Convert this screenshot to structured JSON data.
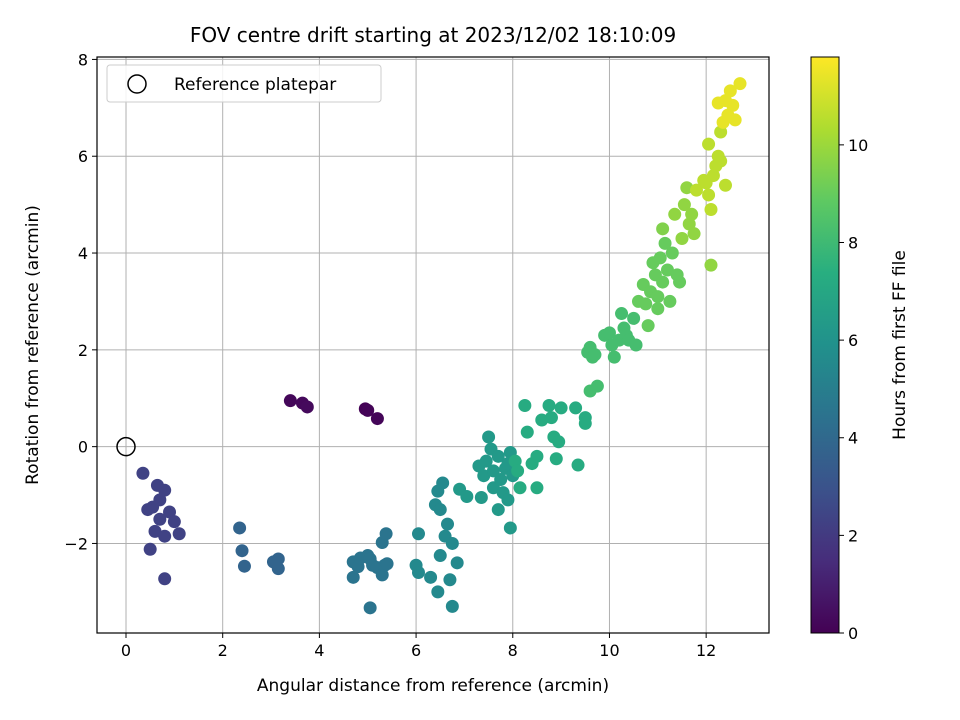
{
  "chart_data": {
    "type": "scatter",
    "title": "FOV centre drift starting at 2023/12/02 18:10:09",
    "xlabel": "Angular distance from reference (arcmin)",
    "ylabel": "Rotation from reference (arcmin)",
    "xlim": [
      -0.6,
      13.3
    ],
    "ylim": [
      -3.85,
      8.05
    ],
    "xticks": [
      0,
      2,
      4,
      6,
      8,
      10,
      12
    ],
    "yticks": [
      -2,
      0,
      2,
      4,
      6,
      8
    ],
    "grid": true,
    "legend": {
      "location": "upper-left",
      "entries": [
        "Reference platepar"
      ]
    },
    "reference_point": {
      "x": 0,
      "y": 0
    },
    "colorbar": {
      "label": "Hours from first FF file",
      "range": [
        0,
        11.8
      ],
      "ticks": [
        0,
        2,
        4,
        6,
        8,
        10
      ],
      "colormap": "viridis"
    },
    "points": [
      {
        "x": 3.4,
        "y": 0.95,
        "h": 0.2
      },
      {
        "x": 3.65,
        "y": 0.9,
        "h": 0.25
      },
      {
        "x": 3.75,
        "y": 0.82,
        "h": 0.3
      },
      {
        "x": 4.95,
        "y": 0.78,
        "h": 0.05
      },
      {
        "x": 5.0,
        "y": 0.75,
        "h": 0.1
      },
      {
        "x": 5.2,
        "y": 0.58,
        "h": 0.15
      },
      {
        "x": 0.35,
        "y": -0.55,
        "h": 2.3
      },
      {
        "x": 0.65,
        "y": -0.8,
        "h": 2.3
      },
      {
        "x": 0.8,
        "y": -0.9,
        "h": 2.3
      },
      {
        "x": 0.7,
        "y": -1.1,
        "h": 2.3
      },
      {
        "x": 0.55,
        "y": -1.25,
        "h": 2.3
      },
      {
        "x": 0.45,
        "y": -1.3,
        "h": 2.3
      },
      {
        "x": 0.9,
        "y": -1.35,
        "h": 2.3
      },
      {
        "x": 0.7,
        "y": -1.5,
        "h": 2.3
      },
      {
        "x": 1.0,
        "y": -1.55,
        "h": 2.3
      },
      {
        "x": 0.6,
        "y": -1.75,
        "h": 2.3
      },
      {
        "x": 0.8,
        "y": -1.85,
        "h": 2.3
      },
      {
        "x": 1.1,
        "y": -1.8,
        "h": 2.3
      },
      {
        "x": 0.5,
        "y": -2.12,
        "h": 2.3
      },
      {
        "x": 0.8,
        "y": -2.73,
        "h": 2.3
      },
      {
        "x": 2.35,
        "y": -1.68,
        "h": 3.8
      },
      {
        "x": 2.4,
        "y": -2.15,
        "h": 3.8
      },
      {
        "x": 2.45,
        "y": -2.47,
        "h": 3.8
      },
      {
        "x": 3.05,
        "y": -2.38,
        "h": 3.8
      },
      {
        "x": 3.15,
        "y": -2.32,
        "h": 3.8
      },
      {
        "x": 3.15,
        "y": -2.52,
        "h": 3.8
      },
      {
        "x": 4.7,
        "y": -2.38,
        "h": 4.5
      },
      {
        "x": 4.7,
        "y": -2.7,
        "h": 4.5
      },
      {
        "x": 4.8,
        "y": -2.48,
        "h": 4.5
      },
      {
        "x": 4.85,
        "y": -2.3,
        "h": 4.5
      },
      {
        "x": 5.0,
        "y": -2.25,
        "h": 4.5
      },
      {
        "x": 5.05,
        "y": -2.32,
        "h": 4.5
      },
      {
        "x": 5.1,
        "y": -2.45,
        "h": 4.5
      },
      {
        "x": 5.2,
        "y": -2.5,
        "h": 4.5
      },
      {
        "x": 5.3,
        "y": -2.65,
        "h": 4.5
      },
      {
        "x": 5.35,
        "y": -2.45,
        "h": 4.5
      },
      {
        "x": 5.4,
        "y": -2.42,
        "h": 4.5
      },
      {
        "x": 5.3,
        "y": -1.98,
        "h": 4.5
      },
      {
        "x": 5.38,
        "y": -1.8,
        "h": 4.5
      },
      {
        "x": 5.05,
        "y": -3.33,
        "h": 4.5
      },
      {
        "x": 6.0,
        "y": -2.45,
        "h": 5.5
      },
      {
        "x": 6.05,
        "y": -2.6,
        "h": 5.5
      },
      {
        "x": 6.05,
        "y": -1.8,
        "h": 5.5
      },
      {
        "x": 6.3,
        "y": -2.7,
        "h": 5.5
      },
      {
        "x": 6.4,
        "y": -1.2,
        "h": 5.5
      },
      {
        "x": 6.45,
        "y": -0.92,
        "h": 5.5
      },
      {
        "x": 6.5,
        "y": -1.3,
        "h": 5.5
      },
      {
        "x": 6.55,
        "y": -0.75,
        "h": 5.5
      },
      {
        "x": 6.5,
        "y": -2.25,
        "h": 5.5
      },
      {
        "x": 6.6,
        "y": -1.85,
        "h": 5.5
      },
      {
        "x": 6.65,
        "y": -1.6,
        "h": 5.5
      },
      {
        "x": 6.75,
        "y": -2.0,
        "h": 5.5
      },
      {
        "x": 6.7,
        "y": -2.75,
        "h": 5.5
      },
      {
        "x": 6.85,
        "y": -2.4,
        "h": 5.5
      },
      {
        "x": 6.45,
        "y": -3.0,
        "h": 5.5
      },
      {
        "x": 6.75,
        "y": -3.3,
        "h": 5.5
      },
      {
        "x": 6.9,
        "y": -0.88,
        "h": 6.3
      },
      {
        "x": 7.05,
        "y": -1.03,
        "h": 6.3
      },
      {
        "x": 7.3,
        "y": -0.4,
        "h": 6.3
      },
      {
        "x": 7.35,
        "y": -1.05,
        "h": 6.3
      },
      {
        "x": 7.4,
        "y": -0.6,
        "h": 6.3
      },
      {
        "x": 7.45,
        "y": -0.3,
        "h": 6.3
      },
      {
        "x": 7.5,
        "y": 0.2,
        "h": 6.3
      },
      {
        "x": 7.55,
        "y": -0.05,
        "h": 6.3
      },
      {
        "x": 7.6,
        "y": -0.5,
        "h": 6.3
      },
      {
        "x": 7.6,
        "y": -0.85,
        "h": 6.3
      },
      {
        "x": 7.7,
        "y": -0.2,
        "h": 6.3
      },
      {
        "x": 7.75,
        "y": -0.68,
        "h": 6.3
      },
      {
        "x": 7.8,
        "y": -0.95,
        "h": 6.3
      },
      {
        "x": 7.7,
        "y": -1.3,
        "h": 6.3
      },
      {
        "x": 7.85,
        "y": -0.45,
        "h": 6.3
      },
      {
        "x": 7.9,
        "y": -0.35,
        "h": 6.3
      },
      {
        "x": 7.95,
        "y": -0.12,
        "h": 6.3
      },
      {
        "x": 8.0,
        "y": -0.6,
        "h": 6.3
      },
      {
        "x": 7.9,
        "y": -1.1,
        "h": 6.3
      },
      {
        "x": 7.95,
        "y": -1.68,
        "h": 6.3
      },
      {
        "x": 8.05,
        "y": -0.3,
        "h": 7.2
      },
      {
        "x": 8.1,
        "y": -0.5,
        "h": 7.2
      },
      {
        "x": 8.15,
        "y": -0.85,
        "h": 7.2
      },
      {
        "x": 8.25,
        "y": 0.85,
        "h": 7.2
      },
      {
        "x": 8.3,
        "y": 0.3,
        "h": 7.2
      },
      {
        "x": 8.4,
        "y": -0.35,
        "h": 7.2
      },
      {
        "x": 8.5,
        "y": -0.2,
        "h": 7.2
      },
      {
        "x": 8.5,
        "y": -0.85,
        "h": 7.2
      },
      {
        "x": 8.6,
        "y": 0.55,
        "h": 7.2
      },
      {
        "x": 8.75,
        "y": 0.85,
        "h": 7.2
      },
      {
        "x": 8.8,
        "y": 0.6,
        "h": 7.2
      },
      {
        "x": 8.85,
        "y": 0.2,
        "h": 7.2
      },
      {
        "x": 8.9,
        "y": -0.25,
        "h": 7.2
      },
      {
        "x": 8.95,
        "y": 0.1,
        "h": 7.2
      },
      {
        "x": 9.0,
        "y": 0.8,
        "h": 7.2
      },
      {
        "x": 9.3,
        "y": 0.8,
        "h": 7.2
      },
      {
        "x": 9.35,
        "y": -0.38,
        "h": 7.2
      },
      {
        "x": 9.5,
        "y": 0.6,
        "h": 7.2
      },
      {
        "x": 9.5,
        "y": 0.48,
        "h": 7.2
      },
      {
        "x": 9.55,
        "y": 1.95,
        "h": 8.2
      },
      {
        "x": 9.6,
        "y": 2.05,
        "h": 8.2
      },
      {
        "x": 9.65,
        "y": 1.85,
        "h": 8.2
      },
      {
        "x": 9.7,
        "y": 1.9,
        "h": 8.2
      },
      {
        "x": 9.6,
        "y": 1.15,
        "h": 8.2
      },
      {
        "x": 9.75,
        "y": 1.25,
        "h": 8.2
      },
      {
        "x": 9.9,
        "y": 2.3,
        "h": 8.2
      },
      {
        "x": 10.0,
        "y": 2.35,
        "h": 8.2
      },
      {
        "x": 10.05,
        "y": 2.1,
        "h": 8.2
      },
      {
        "x": 10.1,
        "y": 1.85,
        "h": 8.2
      },
      {
        "x": 10.2,
        "y": 2.2,
        "h": 8.2
      },
      {
        "x": 10.25,
        "y": 2.75,
        "h": 8.2
      },
      {
        "x": 10.3,
        "y": 2.45,
        "h": 8.2
      },
      {
        "x": 10.35,
        "y": 2.3,
        "h": 8.2
      },
      {
        "x": 10.4,
        "y": 2.2,
        "h": 8.2
      },
      {
        "x": 10.5,
        "y": 2.65,
        "h": 8.2
      },
      {
        "x": 10.55,
        "y": 2.1,
        "h": 8.2
      },
      {
        "x": 10.6,
        "y": 3.0,
        "h": 9.0
      },
      {
        "x": 10.7,
        "y": 3.35,
        "h": 9.0
      },
      {
        "x": 10.75,
        "y": 2.95,
        "h": 9.0
      },
      {
        "x": 10.8,
        "y": 2.5,
        "h": 9.0
      },
      {
        "x": 10.85,
        "y": 3.2,
        "h": 9.0
      },
      {
        "x": 10.9,
        "y": 3.8,
        "h": 9.0
      },
      {
        "x": 10.95,
        "y": 3.55,
        "h": 9.0
      },
      {
        "x": 11.0,
        "y": 3.1,
        "h": 9.0
      },
      {
        "x": 11.0,
        "y": 2.85,
        "h": 9.0
      },
      {
        "x": 11.05,
        "y": 3.9,
        "h": 9.0
      },
      {
        "x": 11.1,
        "y": 3.4,
        "h": 9.0
      },
      {
        "x": 11.15,
        "y": 4.2,
        "h": 9.0
      },
      {
        "x": 11.2,
        "y": 3.65,
        "h": 9.0
      },
      {
        "x": 11.25,
        "y": 3.0,
        "h": 9.0
      },
      {
        "x": 11.3,
        "y": 4.0,
        "h": 9.0
      },
      {
        "x": 11.4,
        "y": 3.55,
        "h": 9.0
      },
      {
        "x": 11.45,
        "y": 3.4,
        "h": 9.0
      },
      {
        "x": 11.1,
        "y": 4.5,
        "h": 9.5
      },
      {
        "x": 11.35,
        "y": 4.8,
        "h": 9.8
      },
      {
        "x": 11.5,
        "y": 4.3,
        "h": 9.8
      },
      {
        "x": 11.55,
        "y": 5.0,
        "h": 9.8
      },
      {
        "x": 11.6,
        "y": 5.35,
        "h": 9.8
      },
      {
        "x": 11.65,
        "y": 4.6,
        "h": 9.8
      },
      {
        "x": 11.7,
        "y": 4.8,
        "h": 9.8
      },
      {
        "x": 11.75,
        "y": 4.4,
        "h": 9.8
      },
      {
        "x": 12.1,
        "y": 3.75,
        "h": 9.8
      },
      {
        "x": 11.8,
        "y": 5.3,
        "h": 10.6
      },
      {
        "x": 11.95,
        "y": 5.5,
        "h": 10.6
      },
      {
        "x": 12.0,
        "y": 5.45,
        "h": 10.6
      },
      {
        "x": 12.05,
        "y": 5.2,
        "h": 10.6
      },
      {
        "x": 12.1,
        "y": 4.9,
        "h": 10.6
      },
      {
        "x": 12.05,
        "y": 6.25,
        "h": 10.6
      },
      {
        "x": 12.15,
        "y": 5.6,
        "h": 10.6
      },
      {
        "x": 12.2,
        "y": 5.8,
        "h": 10.6
      },
      {
        "x": 12.25,
        "y": 6.0,
        "h": 10.6
      },
      {
        "x": 12.3,
        "y": 5.9,
        "h": 10.6
      },
      {
        "x": 12.3,
        "y": 6.5,
        "h": 10.6
      },
      {
        "x": 12.4,
        "y": 5.4,
        "h": 10.6
      },
      {
        "x": 12.25,
        "y": 7.1,
        "h": 11.4
      },
      {
        "x": 12.35,
        "y": 6.7,
        "h": 11.4
      },
      {
        "x": 12.4,
        "y": 7.15,
        "h": 11.4
      },
      {
        "x": 12.45,
        "y": 6.85,
        "h": 11.4
      },
      {
        "x": 12.5,
        "y": 7.35,
        "h": 11.4
      },
      {
        "x": 12.55,
        "y": 7.05,
        "h": 11.4
      },
      {
        "x": 12.6,
        "y": 6.75,
        "h": 11.4
      },
      {
        "x": 12.7,
        "y": 7.5,
        "h": 11.4
      }
    ]
  }
}
